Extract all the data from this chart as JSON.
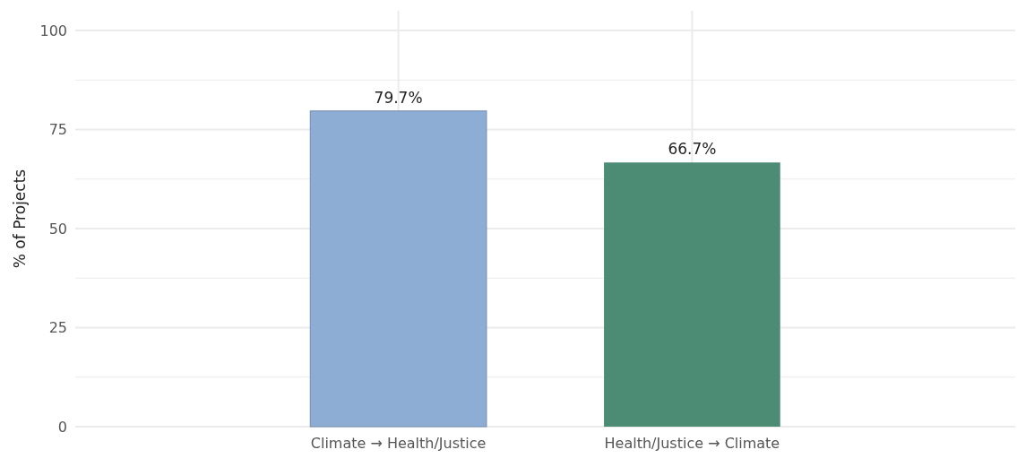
{
  "chart_data": {
    "type": "bar",
    "ylabel": "% of Projects",
    "categories": [
      "Climate → Health/Justice",
      "Health/Justice → Climate"
    ],
    "values": [
      79.7,
      66.7
    ],
    "colors": [
      "#8eadd4",
      "#4d8c74"
    ],
    "value_labels": [
      "79.7%",
      "66.7%"
    ],
    "ylim": [
      0,
      105
    ],
    "yticks": [
      0,
      {
        "value": 12.5,
        "label": null
      },
      25,
      {
        "value": 37.5,
        "label": null
      },
      50,
      {
        "value": 62.5,
        "label": null
      },
      75,
      {
        "value": 87.5,
        "label": null
      },
      100
    ],
    "grid": true
  }
}
